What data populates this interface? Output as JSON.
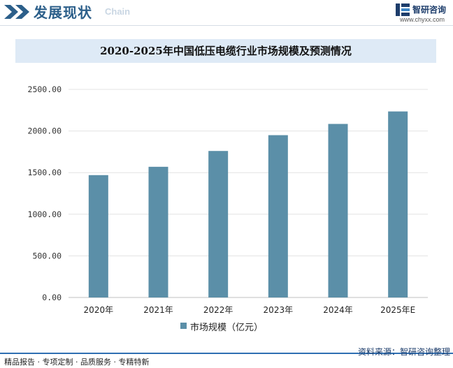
{
  "header": {
    "title": "发展现状",
    "subtitle": "Chain",
    "logo_name": "智研咨询",
    "logo_url": "www.chyxx.com"
  },
  "footer": {
    "left_text": "精品报告 · 专项定制 · 品质服务 · 专精特新",
    "source": "资料来源：智研咨询整理"
  },
  "colors": {
    "bar": "#5b8fa8",
    "title_band": "#deeaf6",
    "header_text": "#2c5f8a",
    "footer_rule": "#2f6fb2"
  },
  "chart_data": {
    "type": "bar",
    "title": "2020-2025年中国低压电缆行业市场规模及预测情况",
    "categories": [
      "2020年",
      "2021年",
      "2022年",
      "2023年",
      "2024年",
      "2025年E"
    ],
    "series": [
      {
        "name": "市场规模（亿元）",
        "values": [
          1470,
          1570,
          1760,
          1950,
          2085,
          2235
        ]
      }
    ],
    "ylim": [
      0,
      2500
    ],
    "yticks": [
      0,
      500,
      1000,
      1500,
      2000,
      2500
    ],
    "ytick_labels": [
      "0.00",
      "500.00",
      "1000.00",
      "1500.00",
      "2000.00",
      "2500.00"
    ],
    "grid": true,
    "legend": "bottom"
  }
}
